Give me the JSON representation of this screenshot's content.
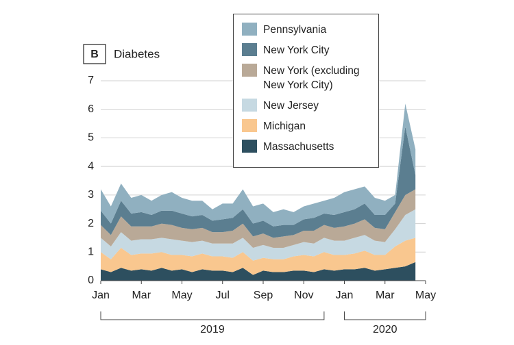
{
  "chart_data": {
    "type": "stacked-area",
    "panel_label": "B",
    "title": "Diabetes",
    "x": [
      0,
      0.5,
      1,
      1.5,
      2,
      2.5,
      3,
      3.5,
      4,
      4.5,
      5,
      5.5,
      6,
      6.5,
      7,
      7.5,
      8,
      8.5,
      9,
      9.5,
      10,
      10.5,
      11,
      11.5,
      12,
      12.5,
      13,
      13.5,
      14,
      14.5,
      15,
      15.5
    ],
    "xlim": [
      0,
      16
    ],
    "xticks": [
      {
        "value": 0,
        "label": "Jan"
      },
      {
        "value": 2,
        "label": "Mar"
      },
      {
        "value": 4,
        "label": "May"
      },
      {
        "value": 6,
        "label": "Jul"
      },
      {
        "value": 8,
        "label": "Sep"
      },
      {
        "value": 10,
        "label": "Nov"
      },
      {
        "value": 12,
        "label": "Jan"
      },
      {
        "value": 14,
        "label": "Mar"
      },
      {
        "value": 16,
        "label": "May"
      }
    ],
    "periods": [
      {
        "label": "2019",
        "start": 0,
        "end": 11
      },
      {
        "label": "2020",
        "start": 12,
        "end": 16
      }
    ],
    "ylim": [
      0,
      7
    ],
    "yticks": [
      0,
      1,
      2,
      3,
      4,
      5,
      6,
      7
    ],
    "grid": true,
    "series": [
      {
        "name": "Massachusetts",
        "color": "#2d4f5f",
        "values": [
          0.4,
          0.3,
          0.45,
          0.35,
          0.4,
          0.35,
          0.45,
          0.35,
          0.4,
          0.3,
          0.4,
          0.35,
          0.35,
          0.3,
          0.45,
          0.2,
          0.35,
          0.3,
          0.3,
          0.35,
          0.35,
          0.3,
          0.4,
          0.35,
          0.4,
          0.4,
          0.45,
          0.35,
          0.4,
          0.45,
          0.5,
          0.65
        ]
      },
      {
        "name": "Michigan",
        "color": "#f9c78f",
        "values": [
          0.6,
          0.45,
          0.7,
          0.55,
          0.55,
          0.6,
          0.55,
          0.55,
          0.5,
          0.55,
          0.55,
          0.5,
          0.5,
          0.5,
          0.55,
          0.5,
          0.45,
          0.45,
          0.45,
          0.5,
          0.55,
          0.55,
          0.6,
          0.55,
          0.5,
          0.55,
          0.6,
          0.55,
          0.5,
          0.75,
          0.9,
          0.85
        ]
      },
      {
        "name": "New Jersey",
        "color": "#c6d9e2",
        "values": [
          0.5,
          0.45,
          0.55,
          0.5,
          0.5,
          0.5,
          0.5,
          0.55,
          0.5,
          0.5,
          0.45,
          0.45,
          0.45,
          0.5,
          0.5,
          0.45,
          0.45,
          0.4,
          0.4,
          0.4,
          0.45,
          0.45,
          0.5,
          0.5,
          0.5,
          0.55,
          0.55,
          0.5,
          0.45,
          0.6,
          0.9,
          1.0
        ]
      },
      {
        "name": "New York (excluding New York City)",
        "color": "#b9a997",
        "values": [
          0.45,
          0.4,
          0.55,
          0.5,
          0.45,
          0.45,
          0.5,
          0.5,
          0.45,
          0.45,
          0.45,
          0.4,
          0.4,
          0.45,
          0.5,
          0.4,
          0.4,
          0.35,
          0.4,
          0.35,
          0.4,
          0.45,
          0.45,
          0.45,
          0.5,
          0.5,
          0.55,
          0.45,
          0.45,
          0.6,
          0.7,
          0.7
        ]
      },
      {
        "name": "New York City",
        "color": "#5b7e90",
        "values": [
          0.5,
          0.4,
          0.55,
          0.45,
          0.5,
          0.4,
          0.45,
          0.5,
          0.5,
          0.45,
          0.45,
          0.4,
          0.45,
          0.45,
          0.5,
          0.45,
          0.45,
          0.4,
          0.4,
          0.35,
          0.4,
          0.45,
          0.4,
          0.45,
          0.5,
          0.5,
          0.55,
          0.45,
          0.5,
          0.3,
          2.4,
          0.5
        ]
      },
      {
        "name": "Pennsylvania",
        "color": "#90b0c0",
        "values": [
          0.75,
          0.6,
          0.6,
          0.55,
          0.6,
          0.5,
          0.55,
          0.65,
          0.55,
          0.55,
          0.5,
          0.4,
          0.55,
          0.5,
          0.7,
          0.6,
          0.6,
          0.5,
          0.55,
          0.45,
          0.45,
          0.5,
          0.45,
          0.6,
          0.7,
          0.7,
          0.6,
          0.6,
          0.5,
          0.3,
          0.8,
          0.9
        ]
      }
    ]
  }
}
